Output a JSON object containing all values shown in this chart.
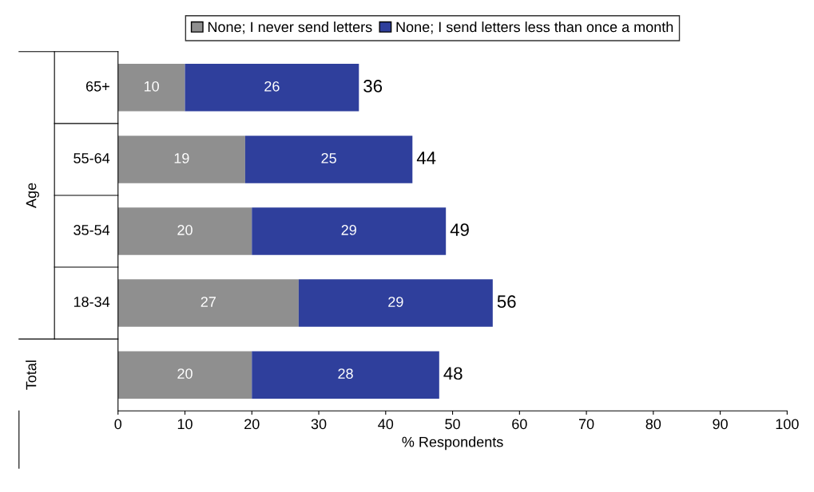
{
  "chart_data": {
    "type": "bar",
    "orientation": "horizontal",
    "stacked": true,
    "ylabel": "Age",
    "xlabel": "% Respondents",
    "categories": [
      "65+",
      "55-64",
      "35-54",
      "18-34",
      null
    ],
    "annotations": [
      "Total"
    ],
    "series": [
      {
        "name": "None; I never send letters",
        "color": "#8f8f8f",
        "values": [
          10,
          19,
          20,
          27,
          20
        ]
      },
      {
        "name": "None; I send letters less than once a month",
        "color": "#2f3f9c",
        "values": [
          26,
          25,
          29,
          29,
          28
        ]
      }
    ],
    "totals": [
      "36",
      "44",
      "49",
      "56",
      "48"
    ],
    "data_labels": true,
    "xlim": [
      0,
      100
    ],
    "xticks": [
      0,
      10,
      20,
      30,
      40,
      50,
      60,
      70,
      80,
      90,
      100
    ],
    "grid": false,
    "legend": "top"
  }
}
